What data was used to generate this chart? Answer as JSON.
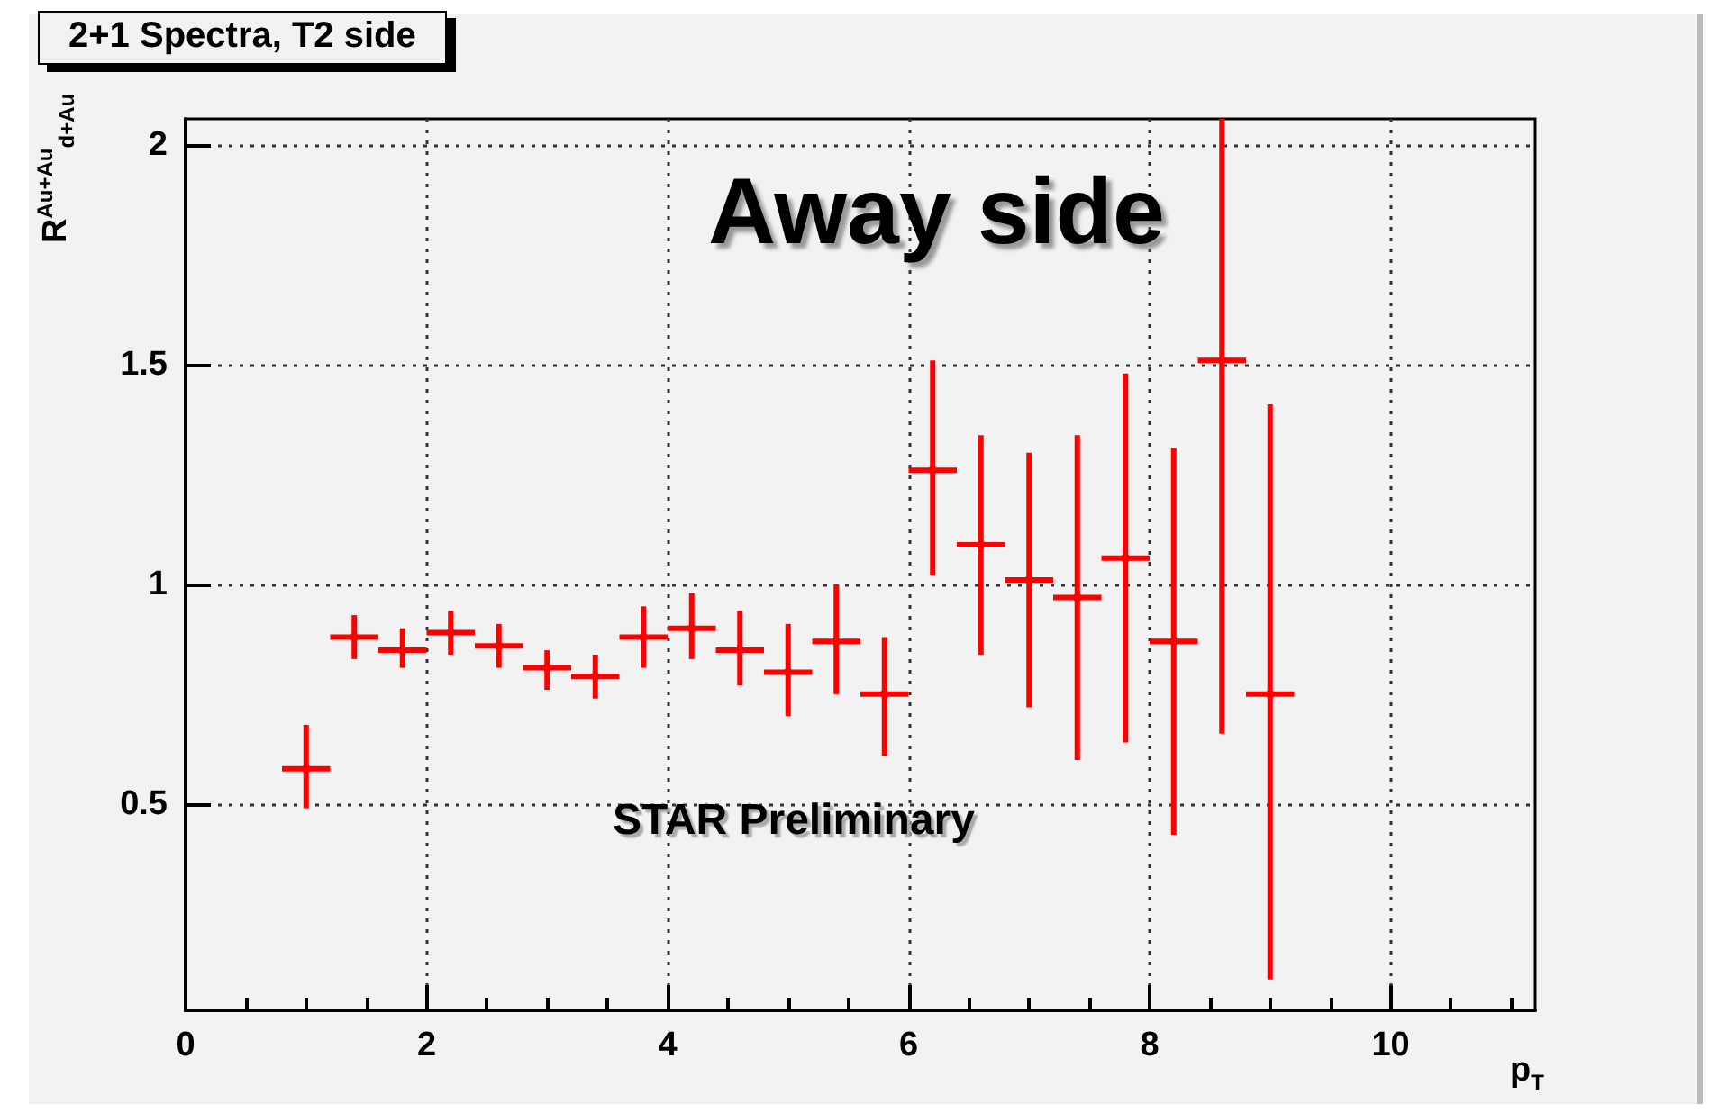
{
  "chart_data": {
    "type": "scatter",
    "title": "2+1 Spectra, T2 side",
    "xlabel": "p$_{T}$",
    "ylabel": "R$^{Au+Au}$$_{d+Au}$",
    "annotations": [
      "Away side",
      "STAR Preliminary"
    ],
    "x": [
      1.0,
      1.4,
      1.8,
      2.2,
      2.6,
      3.0,
      3.4,
      3.8,
      4.2,
      4.6,
      5.0,
      5.4,
      5.8,
      6.2,
      6.6,
      7.0,
      7.4,
      7.8,
      8.2,
      8.6,
      9.0
    ],
    "series": [
      {
        "color": "#ff0000",
        "values": [
          0.58,
          0.88,
          0.85,
          0.89,
          0.86,
          0.81,
          0.79,
          0.88,
          0.9,
          0.85,
          0.8,
          0.87,
          0.75,
          1.26,
          1.09,
          1.01,
          0.97,
          1.06,
          0.87,
          1.51,
          0.75
        ],
        "errors": [
          [
            0.49,
            0.68
          ],
          [
            0.83,
            0.93
          ],
          [
            0.81,
            0.9
          ],
          [
            0.84,
            0.94
          ],
          [
            0.81,
            0.91
          ],
          [
            0.76,
            0.85
          ],
          [
            0.74,
            0.84
          ],
          [
            0.81,
            0.95
          ],
          [
            0.83,
            0.98
          ],
          [
            0.77,
            0.94
          ],
          [
            0.7,
            0.91
          ],
          [
            0.75,
            1.0
          ],
          [
            0.61,
            0.88
          ],
          [
            1.02,
            1.51
          ],
          [
            0.84,
            1.34
          ],
          [
            0.72,
            1.3
          ],
          [
            0.6,
            1.34
          ],
          [
            0.64,
            1.48
          ],
          [
            0.43,
            1.31
          ],
          [
            0.66,
            2.06
          ],
          [
            0.1,
            1.41
          ]
        ],
        "xerrors": [
          0.2,
          0.2,
          0.2,
          0.2,
          0.2,
          0.2,
          0.2,
          0.2,
          0.2,
          0.2,
          0.2,
          0.2,
          0.2,
          0.2,
          0.2,
          0.2,
          0.2,
          0.2,
          0.2,
          0.2,
          0.2
        ]
      }
    ],
    "xlim": [
      0,
      11.2
    ],
    "xticks": [
      0,
      2,
      4,
      6,
      8,
      10
    ],
    "ylim": [
      0.03,
      2.06
    ],
    "yticks": [
      0.5,
      1,
      1.5,
      2
    ],
    "grid": true,
    "marker": "circle"
  }
}
